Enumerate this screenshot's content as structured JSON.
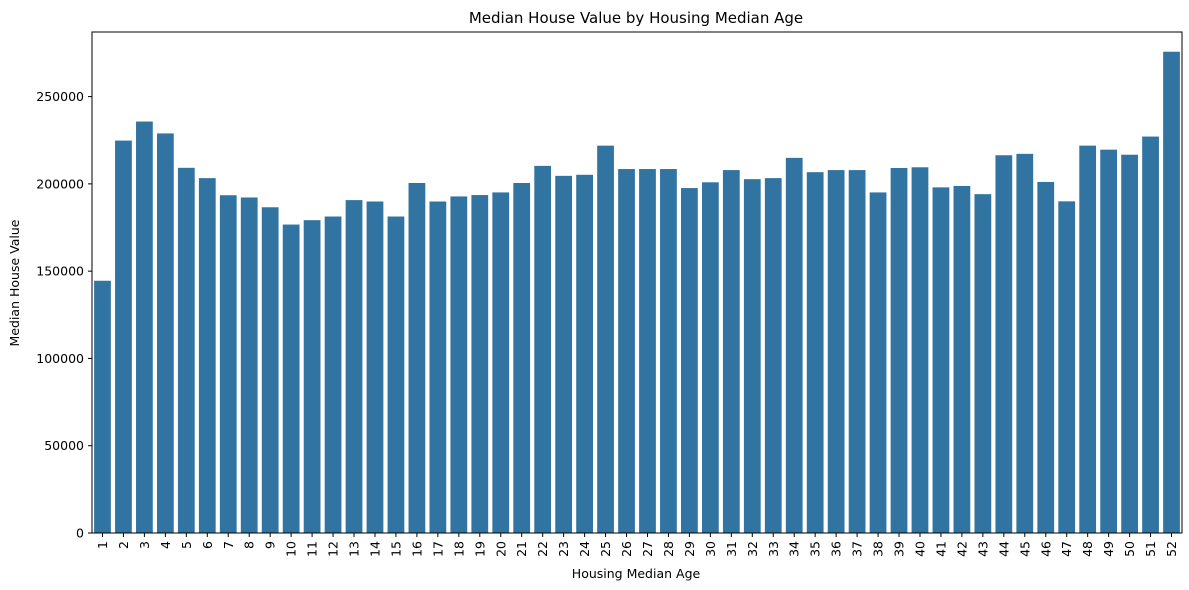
{
  "chart_data": {
    "type": "bar",
    "title": "Median House Value by Housing Median Age",
    "xlabel": "Housing Median Age",
    "ylabel": "Median House Value",
    "categories": [
      "1",
      "2",
      "3",
      "4",
      "5",
      "6",
      "7",
      "8",
      "9",
      "10",
      "11",
      "12",
      "13",
      "14",
      "15",
      "16",
      "17",
      "18",
      "19",
      "20",
      "21",
      "22",
      "23",
      "24",
      "25",
      "26",
      "27",
      "28",
      "29",
      "30",
      "31",
      "32",
      "33",
      "34",
      "35",
      "36",
      "37",
      "38",
      "39",
      "40",
      "41",
      "42",
      "43",
      "44",
      "45",
      "46",
      "47",
      "48",
      "49",
      "50",
      "51",
      "52"
    ],
    "values": [
      144500,
      224800,
      235700,
      228900,
      209200,
      203300,
      193500,
      192200,
      186600,
      176700,
      179200,
      181300,
      190700,
      189900,
      181300,
      200500,
      189900,
      192800,
      193600,
      195100,
      200500,
      210300,
      204600,
      205200,
      221900,
      208500,
      208500,
      208500,
      197600,
      200900,
      207900,
      202700,
      203300,
      214900,
      206700,
      207900,
      207900,
      195100,
      209100,
      209500,
      198000,
      198800,
      194100,
      216400,
      217200,
      201100,
      190000,
      221900,
      219600,
      216700,
      227100,
      275700
    ],
    "ylim": [
      0,
      287000
    ],
    "yticks": [
      0,
      50000,
      100000,
      150000,
      200000,
      250000
    ],
    "bar_color": "#3274a1",
    "grid": false,
    "legend": "none"
  }
}
